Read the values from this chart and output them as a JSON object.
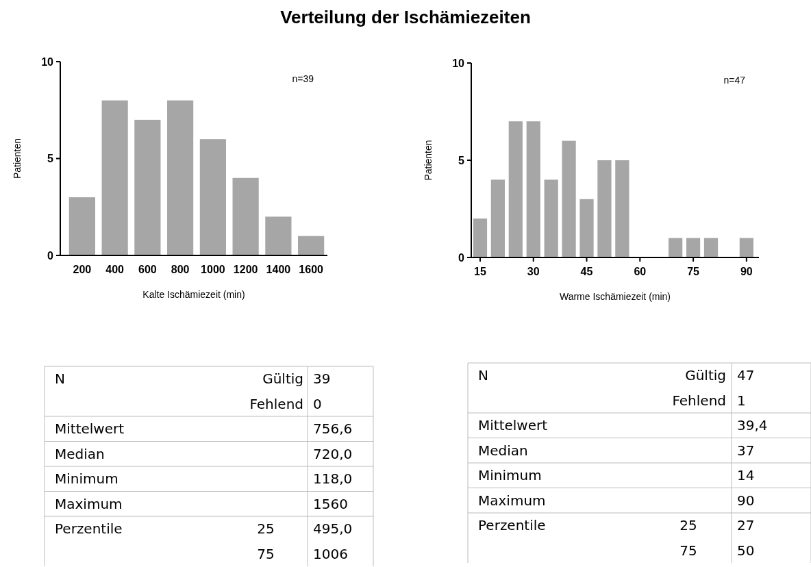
{
  "chart_data": [
    {
      "type": "bar",
      "title": "Verteilung der Ischämiezeiten",
      "categories": [
        "200",
        "400",
        "600",
        "800",
        "1000",
        "1200",
        "1400",
        "1600"
      ],
      "values": [
        3,
        8,
        7,
        8,
        6,
        4,
        2,
        1
      ],
      "color": "#a6a6a6",
      "ylim": [
        0,
        10
      ],
      "yticks": [
        0,
        5,
        10
      ],
      "xlabel": "Kalte Ischämiezeit (min)",
      "ylabel": "Patienten",
      "annotations": [
        "n=39"
      ]
    },
    {
      "type": "bar",
      "x": [
        15,
        20,
        25,
        30,
        35,
        40,
        45,
        50,
        55,
        60,
        65,
        70,
        75,
        80,
        85,
        90
      ],
      "values": [
        2,
        4,
        7,
        7,
        4,
        6,
        3,
        5,
        5,
        0,
        0,
        1,
        1,
        1,
        0,
        1
      ],
      "color": "#a6a6a6",
      "xlim": [
        12.5,
        93.5
      ],
      "xticks": [
        15,
        30,
        45,
        60,
        75,
        90
      ],
      "ylim": [
        0,
        10
      ],
      "yticks": [
        0,
        5,
        10
      ],
      "xlabel": "Warme Ischämiezeit (min)",
      "ylabel": "Patienten",
      "annotations": [
        "n=47"
      ]
    },
    {
      "type": "other",
      "y_categories": [
        "N",
        null,
        "Mittelwert",
        "Median",
        "Minimum",
        "Maximum",
        "Perzentile",
        null
      ],
      "cell_labels": [
        [
          "Gültig",
          "39"
        ],
        [
          "Fehlend",
          "0"
        ],
        [
          null,
          "756,6"
        ],
        [
          null,
          "720,0"
        ],
        [
          null,
          "118,0"
        ],
        [
          null,
          "1560"
        ],
        [
          "25",
          "495,0"
        ],
        [
          "75",
          "1006"
        ]
      ]
    },
    {
      "type": "other",
      "y_categories": [
        "N",
        null,
        "Mittelwert",
        "Median",
        "Minimum",
        "Maximum",
        "Perzentile",
        null
      ],
      "cell_labels": [
        [
          "Gültig",
          "47"
        ],
        [
          "Fehlend",
          "1"
        ],
        [
          null,
          "39,4"
        ],
        [
          null,
          "37"
        ],
        [
          null,
          "14"
        ],
        [
          null,
          "90"
        ],
        [
          "25",
          "27"
        ],
        [
          "75",
          "50"
        ]
      ]
    }
  ]
}
